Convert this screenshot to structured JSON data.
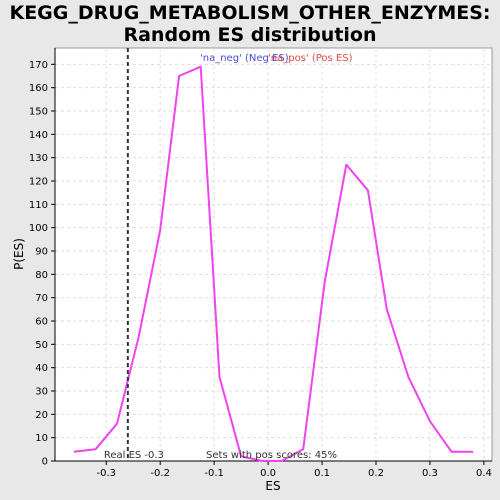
{
  "chart_data": {
    "type": "line",
    "title_line1": "KEGG_DRUG_METABOLISM_OTHER_ENZYMES:",
    "title_line2": "Random ES distribution",
    "xlabel": "ES",
    "ylabel": "P(ES)",
    "xlim": [
      -0.395,
      0.415
    ],
    "ylim": [
      0,
      177
    ],
    "x_ticks": [
      -0.3,
      -0.2,
      -0.1,
      0.0,
      0.1,
      0.2,
      0.3,
      0.4
    ],
    "x_tick_labels": [
      "-0.3",
      "-0.2",
      "-0.1",
      "0.0",
      "0.1",
      "0.2",
      "0.3",
      "0.4"
    ],
    "y_ticks": [
      0,
      10,
      20,
      30,
      40,
      50,
      60,
      70,
      80,
      90,
      100,
      110,
      120,
      130,
      140,
      150,
      160,
      170
    ],
    "y_tick_labels": [
      "0",
      "10",
      "20",
      "30",
      "40",
      "50",
      "60",
      "70",
      "80",
      "90",
      "100",
      "110",
      "120",
      "130",
      "140",
      "150",
      "160",
      "170"
    ],
    "grid": true,
    "legend_placement": "top-center",
    "legend": [
      {
        "label": "'na_neg' (Neg ES)",
        "color": "#4a4adb"
      },
      {
        "label": "'na_pos' (Pos ES)",
        "color": "#e04848"
      }
    ],
    "series": [
      {
        "color": "#ee44ee",
        "x": [
          -0.36,
          -0.32,
          -0.28,
          -0.24,
          -0.2,
          -0.165,
          -0.125,
          -0.09,
          -0.05,
          -0.01,
          0.025,
          0.065,
          0.105,
          0.145,
          0.185,
          0.22,
          0.26,
          0.3,
          0.34,
          0.38
        ],
        "y": [
          4,
          5,
          16,
          53,
          99,
          165,
          169,
          36,
          2,
          0,
          0,
          5,
          77,
          127,
          116,
          65,
          36,
          17,
          4,
          4
        ]
      }
    ],
    "real_es": {
      "value": -0.26,
      "label": "Real ES -0.3"
    },
    "footnote": "Sets with pos scores: 45%"
  }
}
